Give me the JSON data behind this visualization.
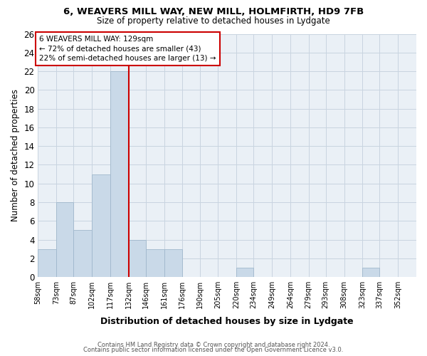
{
  "title_line1": "6, WEAVERS MILL WAY, NEW MILL, HOLMFIRTH, HD9 7FB",
  "title_line2": "Size of property relative to detached houses in Lydgate",
  "xlabel": "Distribution of detached houses by size in Lydgate",
  "ylabel": "Number of detached properties",
  "bar_labels": [
    "58sqm",
    "73sqm",
    "87sqm",
    "102sqm",
    "117sqm",
    "132sqm",
    "146sqm",
    "161sqm",
    "176sqm",
    "190sqm",
    "205sqm",
    "220sqm",
    "234sqm",
    "249sqm",
    "264sqm",
    "279sqm",
    "293sqm",
    "308sqm",
    "323sqm",
    "337sqm",
    "352sqm"
  ],
  "bar_values": [
    3,
    8,
    5,
    11,
    22,
    4,
    3,
    3,
    0,
    0,
    0,
    1,
    0,
    0,
    0,
    0,
    0,
    0,
    1,
    0,
    0
  ],
  "bar_color": "#c9d9e8",
  "bar_edgecolor": "#a0b8cc",
  "bin_edges": [
    58,
    73,
    87,
    102,
    117,
    132,
    146,
    161,
    176,
    190,
    205,
    220,
    234,
    249,
    264,
    279,
    293,
    308,
    323,
    337,
    352,
    367
  ],
  "annotation_line1": "6 WEAVERS MILL WAY: 129sqm",
  "annotation_line2": "← 72% of detached houses are smaller (43)",
  "annotation_line3": "22% of semi-detached houses are larger (13) →",
  "vline_x": 132,
  "vline_color": "#cc0000",
  "annotation_box_edgecolor": "#cc0000",
  "ylim": [
    0,
    26
  ],
  "yticks": [
    0,
    2,
    4,
    6,
    8,
    10,
    12,
    14,
    16,
    18,
    20,
    22,
    24,
    26
  ],
  "footer_line1": "Contains HM Land Registry data © Crown copyright and database right 2024.",
  "footer_line2": "Contains public sector information licensed under the Open Government Licence v3.0.",
  "bg_color": "#ffffff",
  "plot_bg_color": "#eaf0f6",
  "grid_color": "#c8d4e0"
}
